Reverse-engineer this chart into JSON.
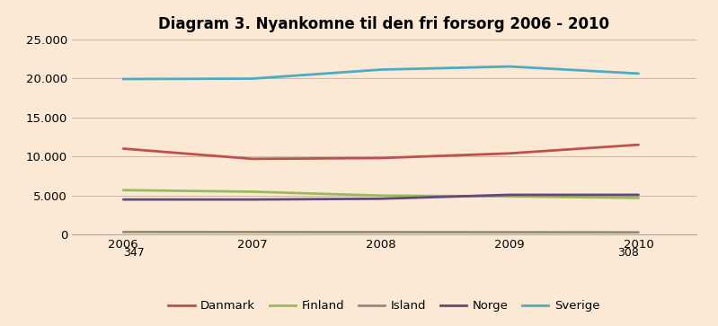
{
  "title": "Diagram 3. Nyankomne til den fri forsorg 2006 - 2010",
  "years": [
    2006,
    2007,
    2008,
    2009,
    2010
  ],
  "series": {
    "Danmark": {
      "values": [
        11000,
        9700,
        9800,
        10400,
        11500
      ],
      "color": "#c0504d"
    },
    "Finland": {
      "values": [
        5700,
        5500,
        5000,
        4900,
        4700
      ],
      "color": "#9bbb59"
    },
    "Island": {
      "values": [
        347,
        340,
        330,
        320,
        308
      ],
      "color": "#948a84"
    },
    "Norge": {
      "values": [
        4500,
        4500,
        4600,
        5100,
        5100
      ],
      "color": "#604a7b"
    },
    "Sverige": {
      "values": [
        19900,
        19950,
        21100,
        21500,
        20600
      ],
      "color": "#4bacc6"
    }
  },
  "ylim": [
    0,
    25000
  ],
  "yticks": [
    0,
    5000,
    10000,
    15000,
    20000,
    25000
  ],
  "background_color": "#fce9d5",
  "plot_bg_color": "#fce9d5",
  "grid_color": "#d0b8a8",
  "linewidth": 2.0,
  "title_fontsize": 12,
  "tick_fontsize": 9.5
}
